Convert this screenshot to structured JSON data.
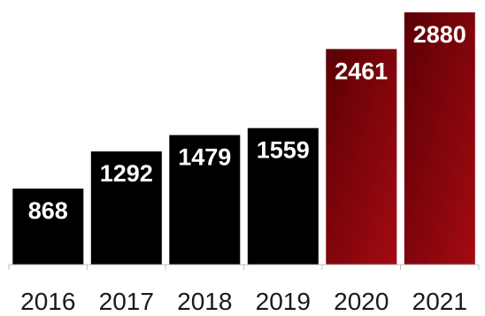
{
  "chart_data": {
    "type": "bar",
    "categories": [
      "2016",
      "2017",
      "2018",
      "2019",
      "2020",
      "2021"
    ],
    "values": [
      868,
      1292,
      1479,
      1559,
      2461,
      2880
    ],
    "ylim": [
      0,
      3000
    ],
    "grid": false,
    "legend": "none",
    "colors": {
      "default_bar": "#000000",
      "highlight_bar_dark": "#5a0005",
      "highlight_bar_light": "#a50a12",
      "value_label": "#ffffff",
      "axis_line": "#bfbfbf",
      "tick_label": "#1a1a1a"
    },
    "highlighted_categories": [
      "2020",
      "2021"
    ]
  }
}
